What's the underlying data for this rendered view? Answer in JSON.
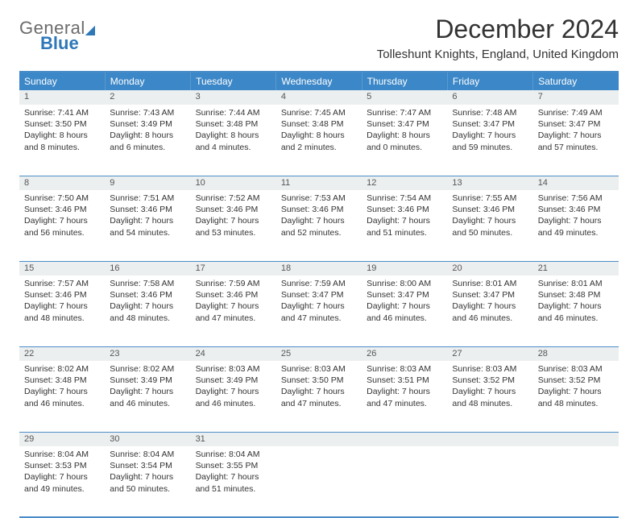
{
  "logo": {
    "top": "General",
    "bottom": "Blue"
  },
  "title": "December 2024",
  "location": "Tolleshunt Knights, England, United Kingdom",
  "colors": {
    "header_bg": "#3c87c7",
    "header_text": "#ffffff",
    "rule": "#4a8cc8",
    "daynum_bg": "#eceff0",
    "logo_grey": "#6b6b6b",
    "logo_blue": "#2e77b8"
  },
  "day_headers": [
    "Sunday",
    "Monday",
    "Tuesday",
    "Wednesday",
    "Thursday",
    "Friday",
    "Saturday"
  ],
  "weeks": [
    [
      {
        "num": "1",
        "sunrise": "7:41 AM",
        "sunset": "3:50 PM",
        "daylight": "8 hours and 8 minutes."
      },
      {
        "num": "2",
        "sunrise": "7:43 AM",
        "sunset": "3:49 PM",
        "daylight": "8 hours and 6 minutes."
      },
      {
        "num": "3",
        "sunrise": "7:44 AM",
        "sunset": "3:48 PM",
        "daylight": "8 hours and 4 minutes."
      },
      {
        "num": "4",
        "sunrise": "7:45 AM",
        "sunset": "3:48 PM",
        "daylight": "8 hours and 2 minutes."
      },
      {
        "num": "5",
        "sunrise": "7:47 AM",
        "sunset": "3:47 PM",
        "daylight": "8 hours and 0 minutes."
      },
      {
        "num": "6",
        "sunrise": "7:48 AM",
        "sunset": "3:47 PM",
        "daylight": "7 hours and 59 minutes."
      },
      {
        "num": "7",
        "sunrise": "7:49 AM",
        "sunset": "3:47 PM",
        "daylight": "7 hours and 57 minutes."
      }
    ],
    [
      {
        "num": "8",
        "sunrise": "7:50 AM",
        "sunset": "3:46 PM",
        "daylight": "7 hours and 56 minutes."
      },
      {
        "num": "9",
        "sunrise": "7:51 AM",
        "sunset": "3:46 PM",
        "daylight": "7 hours and 54 minutes."
      },
      {
        "num": "10",
        "sunrise": "7:52 AM",
        "sunset": "3:46 PM",
        "daylight": "7 hours and 53 minutes."
      },
      {
        "num": "11",
        "sunrise": "7:53 AM",
        "sunset": "3:46 PM",
        "daylight": "7 hours and 52 minutes."
      },
      {
        "num": "12",
        "sunrise": "7:54 AM",
        "sunset": "3:46 PM",
        "daylight": "7 hours and 51 minutes."
      },
      {
        "num": "13",
        "sunrise": "7:55 AM",
        "sunset": "3:46 PM",
        "daylight": "7 hours and 50 minutes."
      },
      {
        "num": "14",
        "sunrise": "7:56 AM",
        "sunset": "3:46 PM",
        "daylight": "7 hours and 49 minutes."
      }
    ],
    [
      {
        "num": "15",
        "sunrise": "7:57 AM",
        "sunset": "3:46 PM",
        "daylight": "7 hours and 48 minutes."
      },
      {
        "num": "16",
        "sunrise": "7:58 AM",
        "sunset": "3:46 PM",
        "daylight": "7 hours and 48 minutes."
      },
      {
        "num": "17",
        "sunrise": "7:59 AM",
        "sunset": "3:46 PM",
        "daylight": "7 hours and 47 minutes."
      },
      {
        "num": "18",
        "sunrise": "7:59 AM",
        "sunset": "3:47 PM",
        "daylight": "7 hours and 47 minutes."
      },
      {
        "num": "19",
        "sunrise": "8:00 AM",
        "sunset": "3:47 PM",
        "daylight": "7 hours and 46 minutes."
      },
      {
        "num": "20",
        "sunrise": "8:01 AM",
        "sunset": "3:47 PM",
        "daylight": "7 hours and 46 minutes."
      },
      {
        "num": "21",
        "sunrise": "8:01 AM",
        "sunset": "3:48 PM",
        "daylight": "7 hours and 46 minutes."
      }
    ],
    [
      {
        "num": "22",
        "sunrise": "8:02 AM",
        "sunset": "3:48 PM",
        "daylight": "7 hours and 46 minutes."
      },
      {
        "num": "23",
        "sunrise": "8:02 AM",
        "sunset": "3:49 PM",
        "daylight": "7 hours and 46 minutes."
      },
      {
        "num": "24",
        "sunrise": "8:03 AM",
        "sunset": "3:49 PM",
        "daylight": "7 hours and 46 minutes."
      },
      {
        "num": "25",
        "sunrise": "8:03 AM",
        "sunset": "3:50 PM",
        "daylight": "7 hours and 47 minutes."
      },
      {
        "num": "26",
        "sunrise": "8:03 AM",
        "sunset": "3:51 PM",
        "daylight": "7 hours and 47 minutes."
      },
      {
        "num": "27",
        "sunrise": "8:03 AM",
        "sunset": "3:52 PM",
        "daylight": "7 hours and 48 minutes."
      },
      {
        "num": "28",
        "sunrise": "8:03 AM",
        "sunset": "3:52 PM",
        "daylight": "7 hours and 48 minutes."
      }
    ],
    [
      {
        "num": "29",
        "sunrise": "8:04 AM",
        "sunset": "3:53 PM",
        "daylight": "7 hours and 49 minutes."
      },
      {
        "num": "30",
        "sunrise": "8:04 AM",
        "sunset": "3:54 PM",
        "daylight": "7 hours and 50 minutes."
      },
      {
        "num": "31",
        "sunrise": "8:04 AM",
        "sunset": "3:55 PM",
        "daylight": "7 hours and 51 minutes."
      },
      null,
      null,
      null,
      null
    ]
  ],
  "labels": {
    "sunrise": "Sunrise: ",
    "sunset": "Sunset: ",
    "daylight": "Daylight: "
  }
}
